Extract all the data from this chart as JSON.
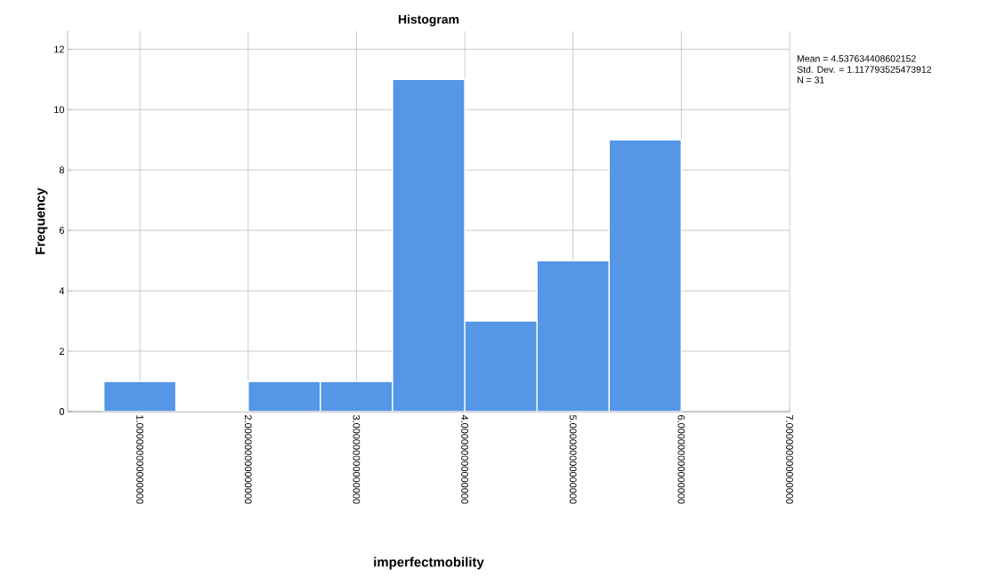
{
  "chart_data": {
    "type": "histogram",
    "title": "Histogram",
    "xlabel": "imperfectmobility",
    "ylabel": "Frequency",
    "bins": [
      0.667,
      1.333,
      2.0,
      2.667,
      3.333,
      4.0,
      4.667,
      5.333,
      6.0
    ],
    "values": [
      1,
      0,
      1,
      1,
      11,
      3,
      5,
      9
    ],
    "color": "#5596e6",
    "xlim": [
      0.333,
      7
    ],
    "ylim": [
      0,
      12.6
    ],
    "xticks": [
      {
        "value": 1,
        "label": "1.000000000000000"
      },
      {
        "value": 2,
        "label": "2.000000000000000"
      },
      {
        "value": 3,
        "label": "3.000000000000000"
      },
      {
        "value": 4,
        "label": "4.000000000000000"
      },
      {
        "value": 5,
        "label": "5.000000000000000"
      },
      {
        "value": 6,
        "label": "6.000000000000000"
      },
      {
        "value": 7,
        "label": "7.000000000000000"
      }
    ],
    "yticks": [
      0,
      2,
      4,
      6,
      8,
      10,
      12
    ],
    "grid": true,
    "annotations": [
      "Mean = 4.537634408602152",
      "Std. Dev. = 1.117793525473912",
      "N = 31"
    ]
  }
}
